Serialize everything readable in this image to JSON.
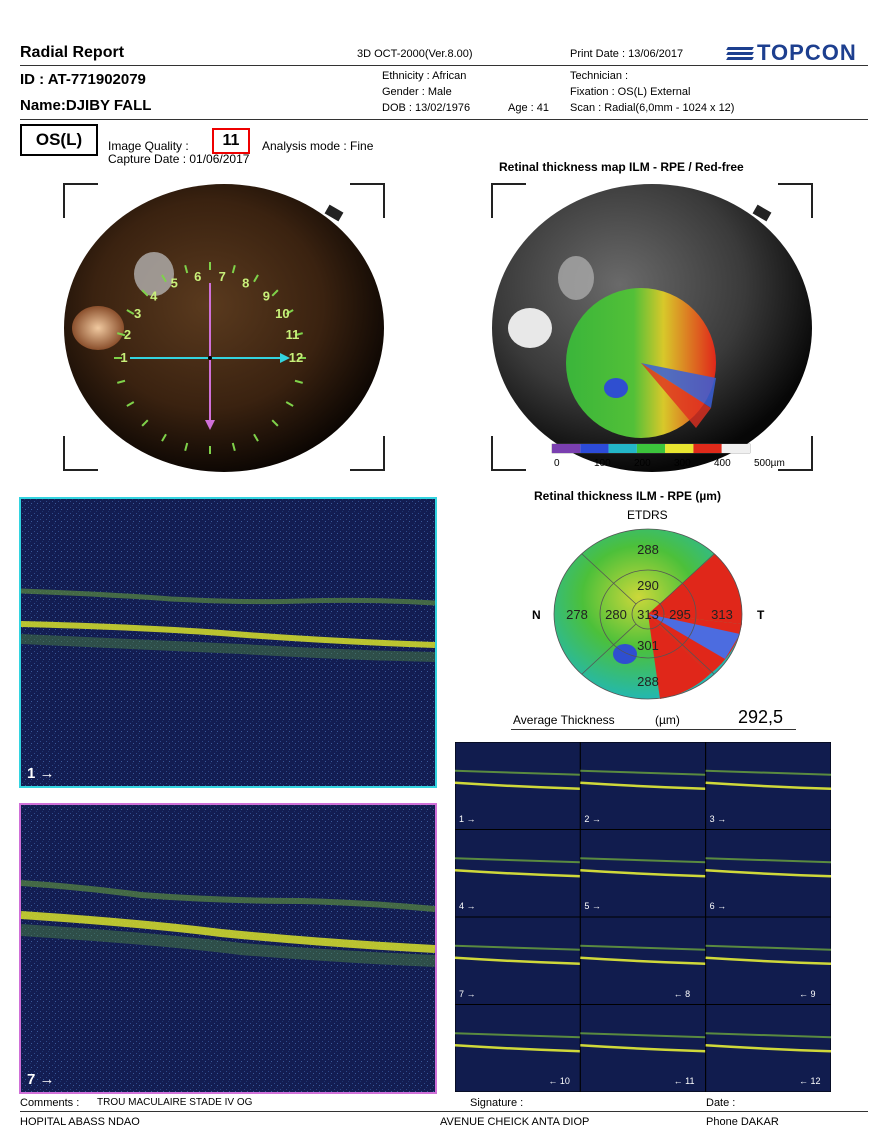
{
  "header": {
    "report_title": "Radial Report",
    "device": "3D OCT-2000(Ver.8.00)",
    "print_date": "Print Date : 13/06/2017",
    "brand": "TOPCON",
    "patient_id": "ID : AT-771902079",
    "patient_name": "Name:DJIBY FALL",
    "ethnicity": "Ethnicity : African",
    "gender": "Gender : Male",
    "dob": "DOB : 13/02/1976",
    "age": "Age : 41",
    "technician": "Technician :",
    "fixation": "Fixation : OS(L) External",
    "scan": "Scan : Radial(6,0mm - 1024 x 12)"
  },
  "exam": {
    "eye": "OS(L)",
    "image_quality_label": "Image Quality :",
    "image_quality_value": "11",
    "analysis_mode": "Analysis mode : Fine",
    "capture_date": "Capture Date : 01/06/2017"
  },
  "fundus": {
    "clock_labels": [
      "1",
      "2",
      "3",
      "4",
      "5",
      "6",
      "7",
      "8",
      "9",
      "10",
      "11",
      "12"
    ]
  },
  "thickness_map": {
    "title": "Retinal thickness map ILM - RPE / Red-free",
    "scale_labels": [
      "0",
      "100",
      "200",
      "300",
      "400",
      "500µm"
    ],
    "scale_colors": [
      "#7a3fb0",
      "#2c4bd8",
      "#23b6c8",
      "#3cc43c",
      "#e8e530",
      "#e02a1a",
      "#f0f0f0"
    ]
  },
  "etdrs": {
    "title": "Retinal thickness ILM - RPE (µm)",
    "subtitle": "ETDRS",
    "nasal_label": "N",
    "temporal_label": "T",
    "values": {
      "outer_superior": "288",
      "inner_superior": "290",
      "outer_nasal": "278",
      "inner_nasal": "280",
      "center": "313",
      "inner_temporal": "295",
      "outer_temporal": "313",
      "inner_inferior": "301",
      "outer_inferior": "288"
    },
    "average_label": "Average Thickness",
    "average_unit": "(µm)",
    "average_value": "292,5"
  },
  "bscans": {
    "main_top_label": "1",
    "main_bottom_label": "7",
    "grid_labels": [
      "1",
      "2",
      "3",
      "4",
      "5",
      "6",
      "7",
      "8",
      "9",
      "10",
      "11",
      "12"
    ]
  },
  "footer": {
    "comments_label": "Comments :",
    "comments_value": "TROU MACULAIRE STADE IV OG",
    "signature_label": "Signature :",
    "date_label": "Date :",
    "hospital": "HOPITAL ABASS NDAO",
    "address": "AVENUE CHEICK ANTA DIOP",
    "phone": "Phone DAKAR"
  }
}
